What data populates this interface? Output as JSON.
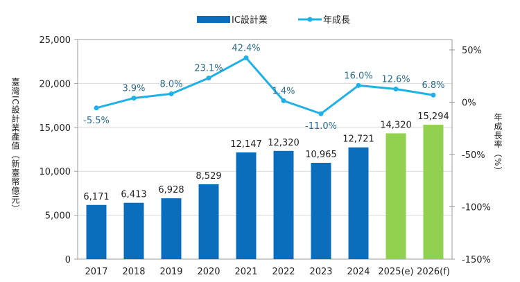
{
  "chart_data": {
    "type": "bar+line",
    "title": "",
    "categories": [
      "2017",
      "2018",
      "2019",
      "2020",
      "2021",
      "2022",
      "2023",
      "2024",
      "2025(e)",
      "2026(f)"
    ],
    "series": [
      {
        "name": "IC設計業",
        "type": "bar",
        "axis": "left",
        "values": [
          6171,
          6413,
          6928,
          8529,
          12147,
          12320,
          10965,
          12721,
          14320,
          15294
        ],
        "labels": [
          "6,171",
          "6,413",
          "6,928",
          "8,529",
          "12,147",
          "12,320",
          "10,965",
          "12,721",
          "14,320",
          "15,294"
        ]
      },
      {
        "name": "年成長",
        "type": "line",
        "axis": "right",
        "values": [
          -5.5,
          3.9,
          8.0,
          23.1,
          42.4,
          1.4,
          -11.0,
          16.0,
          12.6,
          6.8
        ],
        "labels": [
          "-5.5%",
          "3.9%",
          "8.0%",
          "23.1%",
          "42.4%",
          "1.4%",
          "-11.0%",
          "16.0%",
          "12.6%",
          "6.8%"
        ]
      }
    ],
    "ylabel": "臺灣IC設計業產值（新臺幣億元）",
    "y2label": "年成長率（%）",
    "ylim": [
      0,
      25000
    ],
    "yticks": [
      "0",
      "5,000",
      "10,000",
      "15,000",
      "20,000",
      "25,000"
    ],
    "y2lim": [
      -150,
      50
    ],
    "y2ticks": [
      "-150%",
      "-100%",
      "-50%",
      "0%",
      "50%"
    ],
    "grid": true,
    "legend_placement": "top",
    "colors": {
      "bar": "#0a6ebd",
      "bar_forecast": "#92d050",
      "line": "#1fb0e6",
      "line_label": "#2a6a8a"
    }
  }
}
